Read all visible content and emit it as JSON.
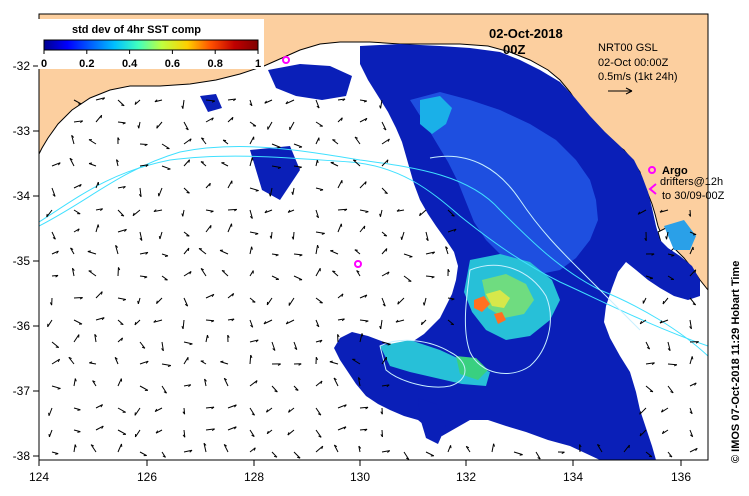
{
  "title": {
    "date": "02-Oct-2018",
    "hour": "00Z"
  },
  "info": {
    "line1": "NRT00 GSL",
    "line2": "02-Oct 00:00Z",
    "line3": "0.5m/s (1kt 24h)"
  },
  "colorbar": {
    "title": "std dev of 4hr SST comp",
    "ticks": [
      "0",
      "0.2",
      "0.4",
      "0.6",
      "0.8",
      "1"
    ],
    "stops": [
      "#00008f",
      "#0000ff",
      "#0060ff",
      "#00c0ff",
      "#40ffbf",
      "#bfff40",
      "#ffd000",
      "#ff5000",
      "#c00000",
      "#800000"
    ]
  },
  "legend": {
    "argo_label": "Argo",
    "drifters_line1": "drifters@12h",
    "drifters_line2": "to 30/09-00Z",
    "marker_color": "#ff00ff"
  },
  "attribution": "© IMOS 07-Oct-2018 11:29 Hobart Time",
  "axes": {
    "x_ticks": [
      "124",
      "126",
      "128",
      "130",
      "132",
      "134",
      "136"
    ],
    "y_ticks": [
      "-32",
      "-33",
      "-34",
      "-35",
      "-36",
      "-37",
      "-38"
    ]
  },
  "colors": {
    "land": "#fccf9f",
    "current": "#40e0ff",
    "contour": "#c8f0ff"
  }
}
